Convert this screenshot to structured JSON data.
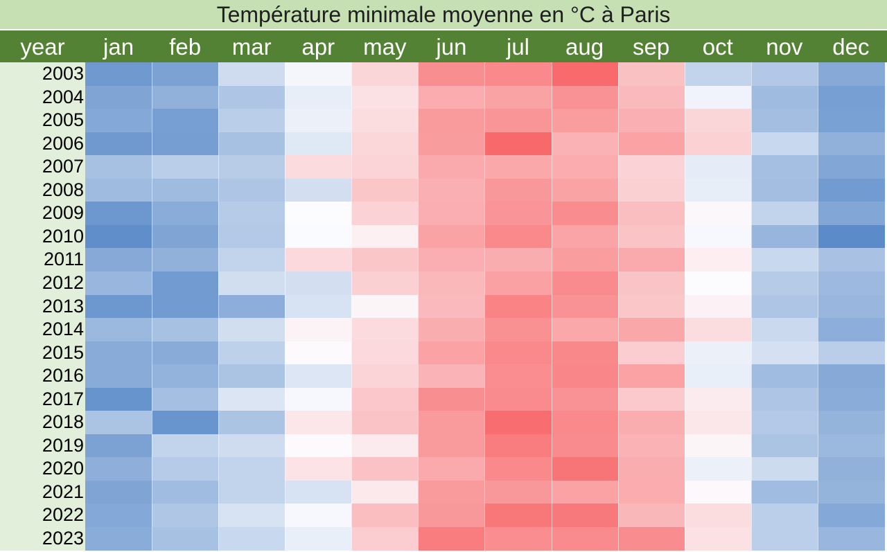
{
  "chart_data": {
    "type": "heatmap",
    "title": "Température minimale moyenne en °C à Paris",
    "corner_label": "year",
    "months": [
      "jan",
      "feb",
      "mar",
      "apr",
      "may",
      "jun",
      "jul",
      "aug",
      "sep",
      "oct",
      "nov",
      "dec"
    ],
    "years": [
      "2003",
      "2004",
      "2005",
      "2006",
      "2007",
      "2008",
      "2009",
      "2010",
      "2011",
      "2012",
      "2013",
      "2014",
      "2015",
      "2016",
      "2017",
      "2018",
      "2019",
      "2020",
      "2021",
      "2022",
      "2023"
    ],
    "values": [
      [
        1.2,
        1.8,
        5.8,
        7.6,
        11.1,
        16.9,
        17.3,
        19.8,
        12.8,
        5.2,
        4.4,
        2.3
      ],
      [
        2.0,
        2.8,
        4.2,
        7.0,
        10.2,
        14.5,
        15.2,
        16.6,
        13.4,
        7.4,
        3.5,
        1.6
      ],
      [
        2.2,
        1.6,
        4.8,
        7.2,
        10.6,
        15.9,
        16.4,
        15.7,
        14.2,
        11.1,
        3.7,
        1.7
      ],
      [
        1.2,
        1.5,
        3.9,
        6.6,
        11.0,
        15.8,
        19.9,
        14.0,
        15.3,
        11.5,
        5.5,
        2.8
      ],
      [
        3.9,
        4.8,
        4.7,
        10.7,
        11.2,
        14.6,
        14.8,
        14.5,
        11.4,
        6.9,
        3.8,
        2.1
      ],
      [
        3.5,
        3.5,
        4.2,
        6.0,
        12.4,
        14.2,
        16.1,
        15.2,
        11.6,
        7.0,
        3.7,
        1.3
      ],
      [
        1.0,
        2.5,
        4.6,
        8.0,
        11.4,
        14.3,
        16.3,
        17.1,
        13.0,
        8.4,
        5.2,
        2.1
      ],
      [
        0.4,
        2.0,
        4.5,
        7.9,
        9.0,
        15.2,
        17.3,
        15.1,
        12.5,
        7.7,
        3.1,
        0.2
      ],
      [
        2.3,
        2.8,
        5.2,
        10.8,
        12.4,
        14.3,
        14.4,
        15.7,
        14.7,
        9.1,
        5.5,
        4.0
      ],
      [
        3.2,
        1.3,
        5.9,
        6.0,
        11.6,
        13.5,
        15.4,
        17.2,
        12.5,
        8.0,
        4.6,
        3.4
      ],
      [
        1.0,
        1.3,
        2.6,
        6.2,
        8.6,
        13.4,
        17.8,
        16.6,
        12.4,
        8.9,
        4.2,
        3.2
      ],
      [
        3.3,
        3.9,
        5.9,
        8.7,
        10.7,
        14.4,
        16.7,
        14.8,
        14.9,
        10.5,
        5.6,
        2.6
      ],
      [
        2.4,
        2.4,
        5.0,
        8.2,
        10.8,
        15.3,
        17.3,
        17.4,
        11.8,
        7.2,
        6.1,
        4.8
      ],
      [
        2.4,
        2.9,
        4.1,
        6.5,
        11.2,
        13.8,
        17.0,
        17.5,
        15.3,
        7.1,
        3.6,
        2.3
      ],
      [
        0.8,
        3.8,
        6.4,
        7.7,
        12.3,
        16.9,
        17.2,
        16.6,
        12.1,
        9.4,
        4.2,
        2.5
      ],
      [
        4.1,
        0.9,
        4.1,
        9.7,
        12.6,
        15.9,
        19.5,
        17.3,
        14.4,
        9.7,
        4.5,
        3.0
      ],
      [
        1.8,
        5.2,
        5.8,
        8.2,
        9.4,
        15.9,
        18.3,
        17.2,
        14.0,
        8.6,
        4.1,
        3.3
      ],
      [
        2.7,
        4.6,
        5.2,
        10.0,
        12.7,
        14.7,
        17.3,
        18.9,
        14.4,
        7.2,
        5.7,
        2.8
      ],
      [
        2.0,
        3.6,
        5.2,
        6.2,
        9.5,
        15.9,
        16.1,
        15.3,
        14.5,
        8.3,
        3.6,
        3.0
      ],
      [
        2.2,
        4.3,
        6.2,
        7.7,
        13.1,
        16.1,
        18.7,
        18.6,
        13.6,
        10.6,
        4.9,
        2.2
      ],
      [
        2.5,
        3.9,
        5.5,
        7.1,
        11.8,
        18.4,
        17.0,
        17.2,
        17.1,
        10.2,
        4.9,
        3.2
      ]
    ],
    "color_scale": {
      "low": "#5b8bc9",
      "mid": "#fcfcff",
      "high": "#f8696b"
    }
  }
}
